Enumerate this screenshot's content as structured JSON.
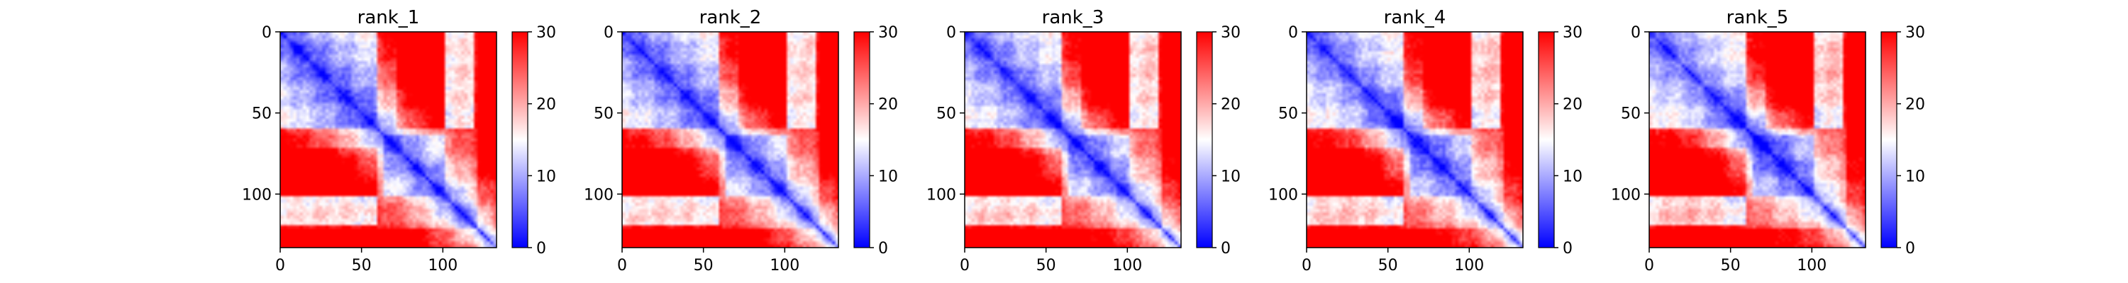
{
  "chart_data": [
    {
      "type": "heatmap",
      "title": "rank_1",
      "x_ticks": [
        0,
        50,
        100
      ],
      "y_ticks": [
        0,
        50,
        100
      ],
      "xlim": [
        0,
        133
      ],
      "ylim": [
        133,
        0
      ],
      "colorbar": {
        "ticks": [
          0,
          10,
          20,
          30
        ],
        "range": [
          0,
          30
        ],
        "colormap": "bwr"
      }
    },
    {
      "type": "heatmap",
      "title": "rank_2",
      "x_ticks": [
        0,
        50,
        100
      ],
      "y_ticks": [
        0,
        50,
        100
      ],
      "xlim": [
        0,
        133
      ],
      "ylim": [
        133,
        0
      ],
      "colorbar": {
        "ticks": [
          0,
          10,
          20,
          30
        ],
        "range": [
          0,
          30
        ],
        "colormap": "bwr"
      }
    },
    {
      "type": "heatmap",
      "title": "rank_3",
      "x_ticks": [
        0,
        50,
        100
      ],
      "y_ticks": [
        0,
        50,
        100
      ],
      "xlim": [
        0,
        133
      ],
      "ylim": [
        133,
        0
      ],
      "colorbar": {
        "ticks": [
          0,
          10,
          20,
          30
        ],
        "range": [
          0,
          30
        ],
        "colormap": "bwr"
      }
    },
    {
      "type": "heatmap",
      "title": "rank_4",
      "x_ticks": [
        0,
        50,
        100
      ],
      "y_ticks": [
        0,
        50,
        100
      ],
      "xlim": [
        0,
        133
      ],
      "ylim": [
        133,
        0
      ],
      "colorbar": {
        "ticks": [
          0,
          10,
          20,
          30
        ],
        "range": [
          0,
          30
        ],
        "colormap": "bwr"
      }
    },
    {
      "type": "heatmap",
      "title": "rank_5",
      "x_ticks": [
        0,
        50,
        100
      ],
      "y_ticks": [
        0,
        50,
        100
      ],
      "xlim": [
        0,
        133
      ],
      "ylim": [
        133,
        0
      ],
      "colorbar": {
        "ticks": [
          0,
          10,
          20,
          30
        ],
        "range": [
          0,
          30
        ],
        "colormap": "bwr"
      }
    }
  ],
  "colors": {
    "low": "#0000ff",
    "mid": "#ffffff",
    "high": "#ff0000"
  }
}
